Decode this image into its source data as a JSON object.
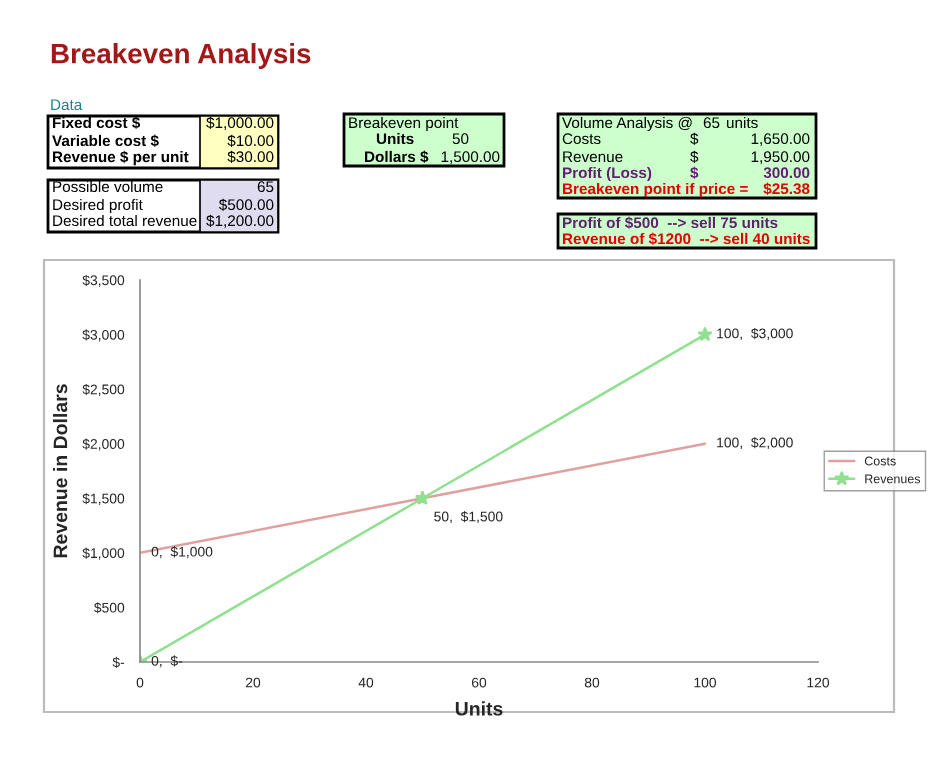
{
  "chart_data": {
    "type": "line",
    "title": "Breakeven Analysis",
    "xlabel": "Units",
    "ylabel": "Revenue in Dollars",
    "xlim": [
      0,
      120
    ],
    "xticks": [
      0,
      20,
      40,
      60,
      80,
      100,
      120
    ],
    "ylim": [
      0,
      3500
    ],
    "yticks": [
      {
        "value": 0,
        "label": "$-"
      },
      {
        "value": 500,
        "label": "$500"
      },
      {
        "value": 1000,
        "label": "$1,000"
      },
      {
        "value": 1500,
        "label": "$1,500"
      },
      {
        "value": 2000,
        "label": "$2,000"
      },
      {
        "value": 2500,
        "label": "$2,500"
      },
      {
        "value": 3000,
        "label": "$3,000"
      },
      {
        "value": 3500,
        "label": "$3,500"
      }
    ],
    "grid": false,
    "legend": "right",
    "series": [
      {
        "name": "Costs",
        "color": "#e0a0a0",
        "x": [
          0,
          50,
          100
        ],
        "values": [
          1000,
          1500,
          2000
        ],
        "marker": "none",
        "value_labels": [
          "0,  $1,000",
          "50,  $1,500",
          "100,  $2,000"
        ]
      },
      {
        "name": "Revenues",
        "color": "#90e090",
        "x": [
          0,
          50,
          100
        ],
        "values": [
          0,
          1500,
          3000
        ],
        "marker": "star",
        "value_labels": [
          "0,  $-",
          null,
          "100,  $3,000"
        ]
      }
    ],
    "annotations": [
      "Data",
      "Fixed cost $",
      "$1,000.00",
      "Variable cost $",
      "$10.00",
      "Revenue $ per unit",
      "$30.00",
      "Possible volume",
      "65",
      "Desired profit",
      "$500.00",
      "Desired total revenue",
      "$1,200.00",
      "Breakeven point",
      "Units",
      "50",
      "Dollars $",
      "1,500.00",
      "Volume Analysis @",
      "65",
      "units",
      "Costs",
      "$",
      "1,650.00",
      "Revenue",
      "$",
      "1,950.00",
      "Profit (Loss)",
      "$",
      "300.00",
      "Breakeven point if price =",
      "$25.38",
      "Profit of $500  --> sell 75 units",
      "Revenue of $1200  --> sell 40 units"
    ]
  }
}
